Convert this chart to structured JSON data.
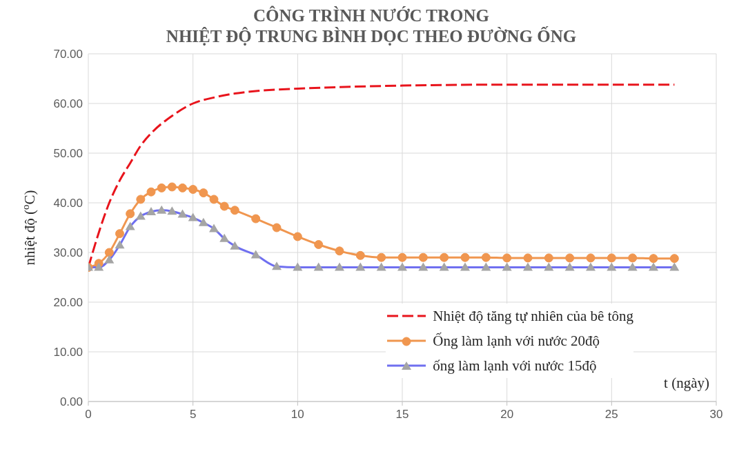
{
  "chart_data": {
    "type": "line",
    "title": "CÔNG TRÌNH NƯỚC TRONG\nNHIỆT ĐỘ TRUNG BÌNH DỌC THEO ĐƯỜNG ỐNG",
    "xlabel": "t (ngày)",
    "ylabel": "nhiệt độ ($^{o}$C)",
    "xlim": [
      0,
      30
    ],
    "xticks": [
      0,
      5,
      10,
      15,
      20,
      25,
      30
    ],
    "ylim": [
      0,
      70
    ],
    "yticks": [
      {
        "value": 0,
        "label": "0.00"
      },
      {
        "value": 10,
        "label": "10.00"
      },
      {
        "value": 20,
        "label": "20.00"
      },
      {
        "value": 30,
        "label": "30.00"
      },
      {
        "value": 40,
        "label": "40.00"
      },
      {
        "value": 50,
        "label": "50.00"
      },
      {
        "value": 60,
        "label": "60.00"
      },
      {
        "value": 70,
        "label": "70.00"
      }
    ],
    "grid": true,
    "legend": "bottom right",
    "series": [
      {
        "name": "Nhiệt độ tăng tự nhiên của bê tông",
        "color": "#e8141c",
        "marker": "none",
        "line_style": "dashed",
        "x": [
          0,
          0.5,
          1,
          1.5,
          2,
          2.5,
          3,
          4,
          5,
          6,
          7,
          8,
          9,
          10,
          12,
          15,
          20,
          28
        ],
        "values": [
          27,
          34,
          40,
          44.5,
          48,
          51.5,
          54,
          57.5,
          60,
          61.2,
          62,
          62.5,
          62.8,
          63,
          63.3,
          63.6,
          63.8,
          63.8
        ]
      },
      {
        "name": "Ống làm lạnh với nước 20độ",
        "color": "#f0964f",
        "marker": "circle",
        "line_style": "solid",
        "x": [
          0,
          0.5,
          1,
          1.5,
          2,
          2.5,
          3,
          3.5,
          4,
          4.5,
          5,
          5.5,
          6,
          6.5,
          7,
          8,
          9,
          10,
          11,
          12,
          13,
          14,
          15,
          16,
          17,
          18,
          19,
          20,
          21,
          22,
          23,
          24,
          25,
          26,
          27,
          28
        ],
        "values": [
          27,
          27.8,
          30,
          33.8,
          37.8,
          40.7,
          42.2,
          43,
          43.2,
          43,
          42.7,
          42,
          40.7,
          39.3,
          38.5,
          36.8,
          35,
          33.2,
          31.6,
          30.3,
          29.4,
          29,
          29,
          29,
          29,
          29,
          29,
          28.9,
          28.9,
          28.9,
          28.9,
          28.9,
          28.9,
          28.9,
          28.8,
          28.8
        ]
      },
      {
        "name": "ống làm lạnh với nước 15độ",
        "color": "#6f6ff0",
        "marker": "triangle",
        "line_style": "solid",
        "x": [
          0,
          0.5,
          1,
          1.5,
          2,
          2.5,
          3,
          3.5,
          4,
          4.5,
          5,
          5.5,
          6,
          6.5,
          7,
          8,
          9,
          10,
          11,
          12,
          13,
          14,
          15,
          16,
          17,
          18,
          19,
          20,
          21,
          22,
          23,
          24,
          25,
          26,
          27,
          28
        ],
        "values": [
          27,
          27,
          28.5,
          31.5,
          35.2,
          37.3,
          38.2,
          38.5,
          38.3,
          37.7,
          37,
          36,
          34.8,
          32.8,
          31.3,
          29.5,
          27.2,
          27,
          27,
          27,
          27,
          27,
          27,
          27,
          27,
          27,
          27,
          27,
          27,
          27,
          27,
          27,
          27,
          27,
          27,
          27
        ]
      }
    ]
  }
}
